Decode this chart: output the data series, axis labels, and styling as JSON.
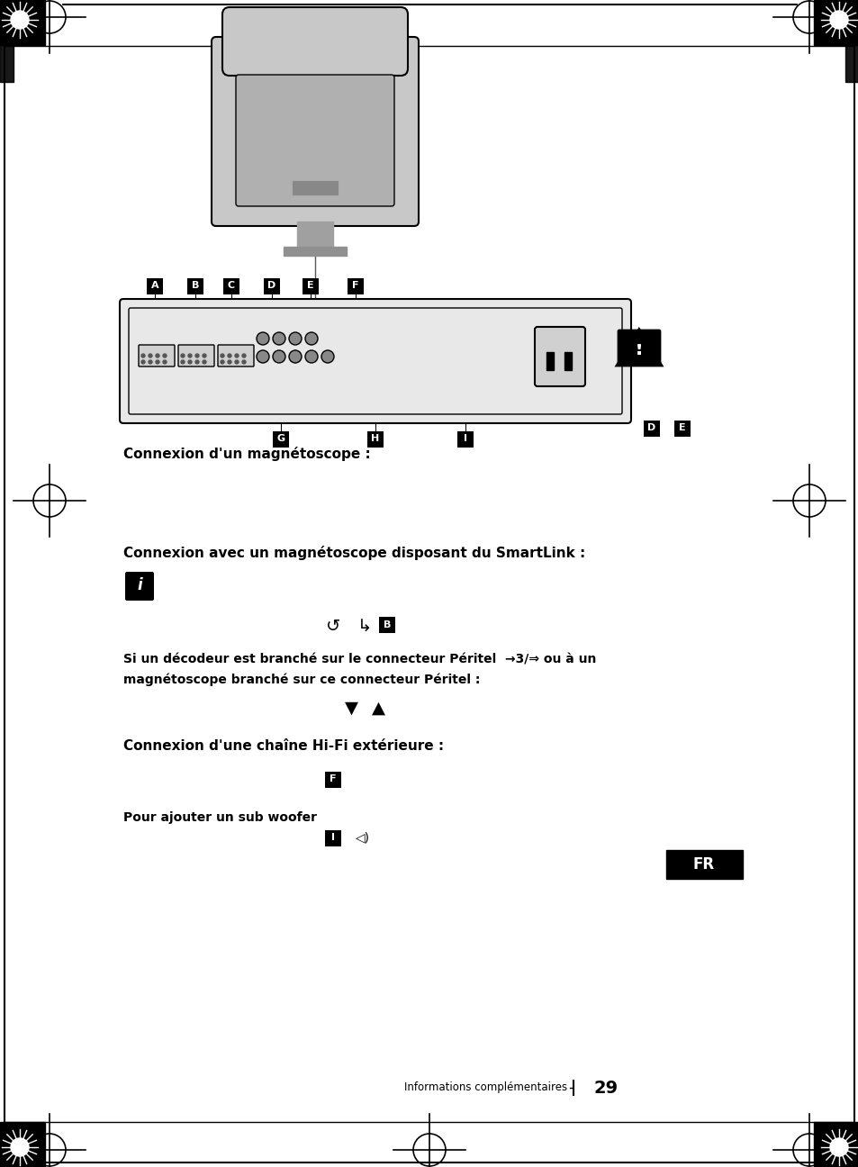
{
  "bg_color": "#ffffff",
  "text_color": "#000000",
  "page_width": 9.54,
  "page_height": 12.96,
  "title1": "Connexion d'un magnétoscope :",
  "title2": "Connexion avec un magnétoscope disposant du SmartLink :",
  "title3": "Si un décodeur est branché sur le connecteur Péritel  →3/⇒ ou à un\nmagnétoscope branché sur ce connecteur Péritel :",
  "title4": "Connexion d'une chaîne Hi-Fi extérieure :",
  "title5": "Pour ajouter un sub woofer",
  "footer": "Informations complémentaires",
  "page_num": "29",
  "fr_label": "FR"
}
